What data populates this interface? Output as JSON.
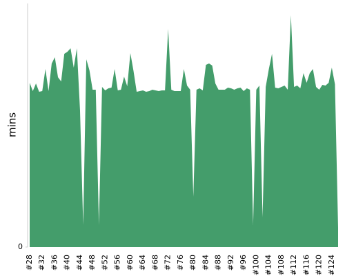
{
  "chart_data": {
    "type": "area",
    "y_label": "mins",
    "color": "#449d6b",
    "categories": [
      "#28",
      null,
      null,
      null,
      "#32",
      null,
      null,
      null,
      "#36",
      null,
      null,
      null,
      "#40",
      null,
      null,
      null,
      "#44",
      null,
      null,
      null,
      "#48",
      null,
      null,
      null,
      "#52",
      null,
      null,
      null,
      "#56",
      null,
      null,
      null,
      "#60",
      null,
      null,
      null,
      "#64",
      null,
      null,
      null,
      "#68",
      null,
      null,
      null,
      "#72",
      null,
      null,
      null,
      "#76",
      null,
      null,
      null,
      "#80",
      null,
      null,
      null,
      "#84",
      null,
      null,
      null,
      "#88",
      null,
      null,
      null,
      "#92",
      null,
      null,
      null,
      "#96",
      null,
      null,
      null,
      "#100",
      null,
      null,
      null,
      "#104",
      null,
      null,
      null,
      "#108",
      null,
      null,
      null,
      "#112",
      null,
      null,
      null,
      "#116",
      null,
      null,
      null,
      "#120",
      null,
      null,
      null,
      "#124",
      null,
      null
    ],
    "values": [
      238,
      226,
      237,
      225,
      226,
      258,
      226,
      266,
      275,
      246,
      240,
      280,
      283,
      288,
      260,
      288,
      198,
      32,
      272,
      256,
      228,
      228,
      32,
      232,
      227,
      230,
      231,
      258,
      227,
      228,
      247,
      233,
      281,
      255,
      225,
      226,
      227,
      225,
      226,
      228,
      227,
      226,
      227,
      227,
      316,
      228,
      226,
      226,
      226,
      258,
      234,
      228,
      73,
      228,
      230,
      227,
      264,
      266,
      263,
      237,
      228,
      228,
      228,
      231,
      230,
      228,
      230,
      231,
      226,
      230,
      228,
      32,
      228,
      234,
      43,
      232,
      258,
      280,
      231,
      230,
      232,
      234,
      228,
      336,
      232,
      234,
      230,
      252,
      238,
      252,
      258,
      232,
      228,
      235,
      234,
      238,
      260,
      236,
      28
    ],
    "ylim": [
      0,
      353
    ],
    "yticks": [
      0
    ]
  }
}
